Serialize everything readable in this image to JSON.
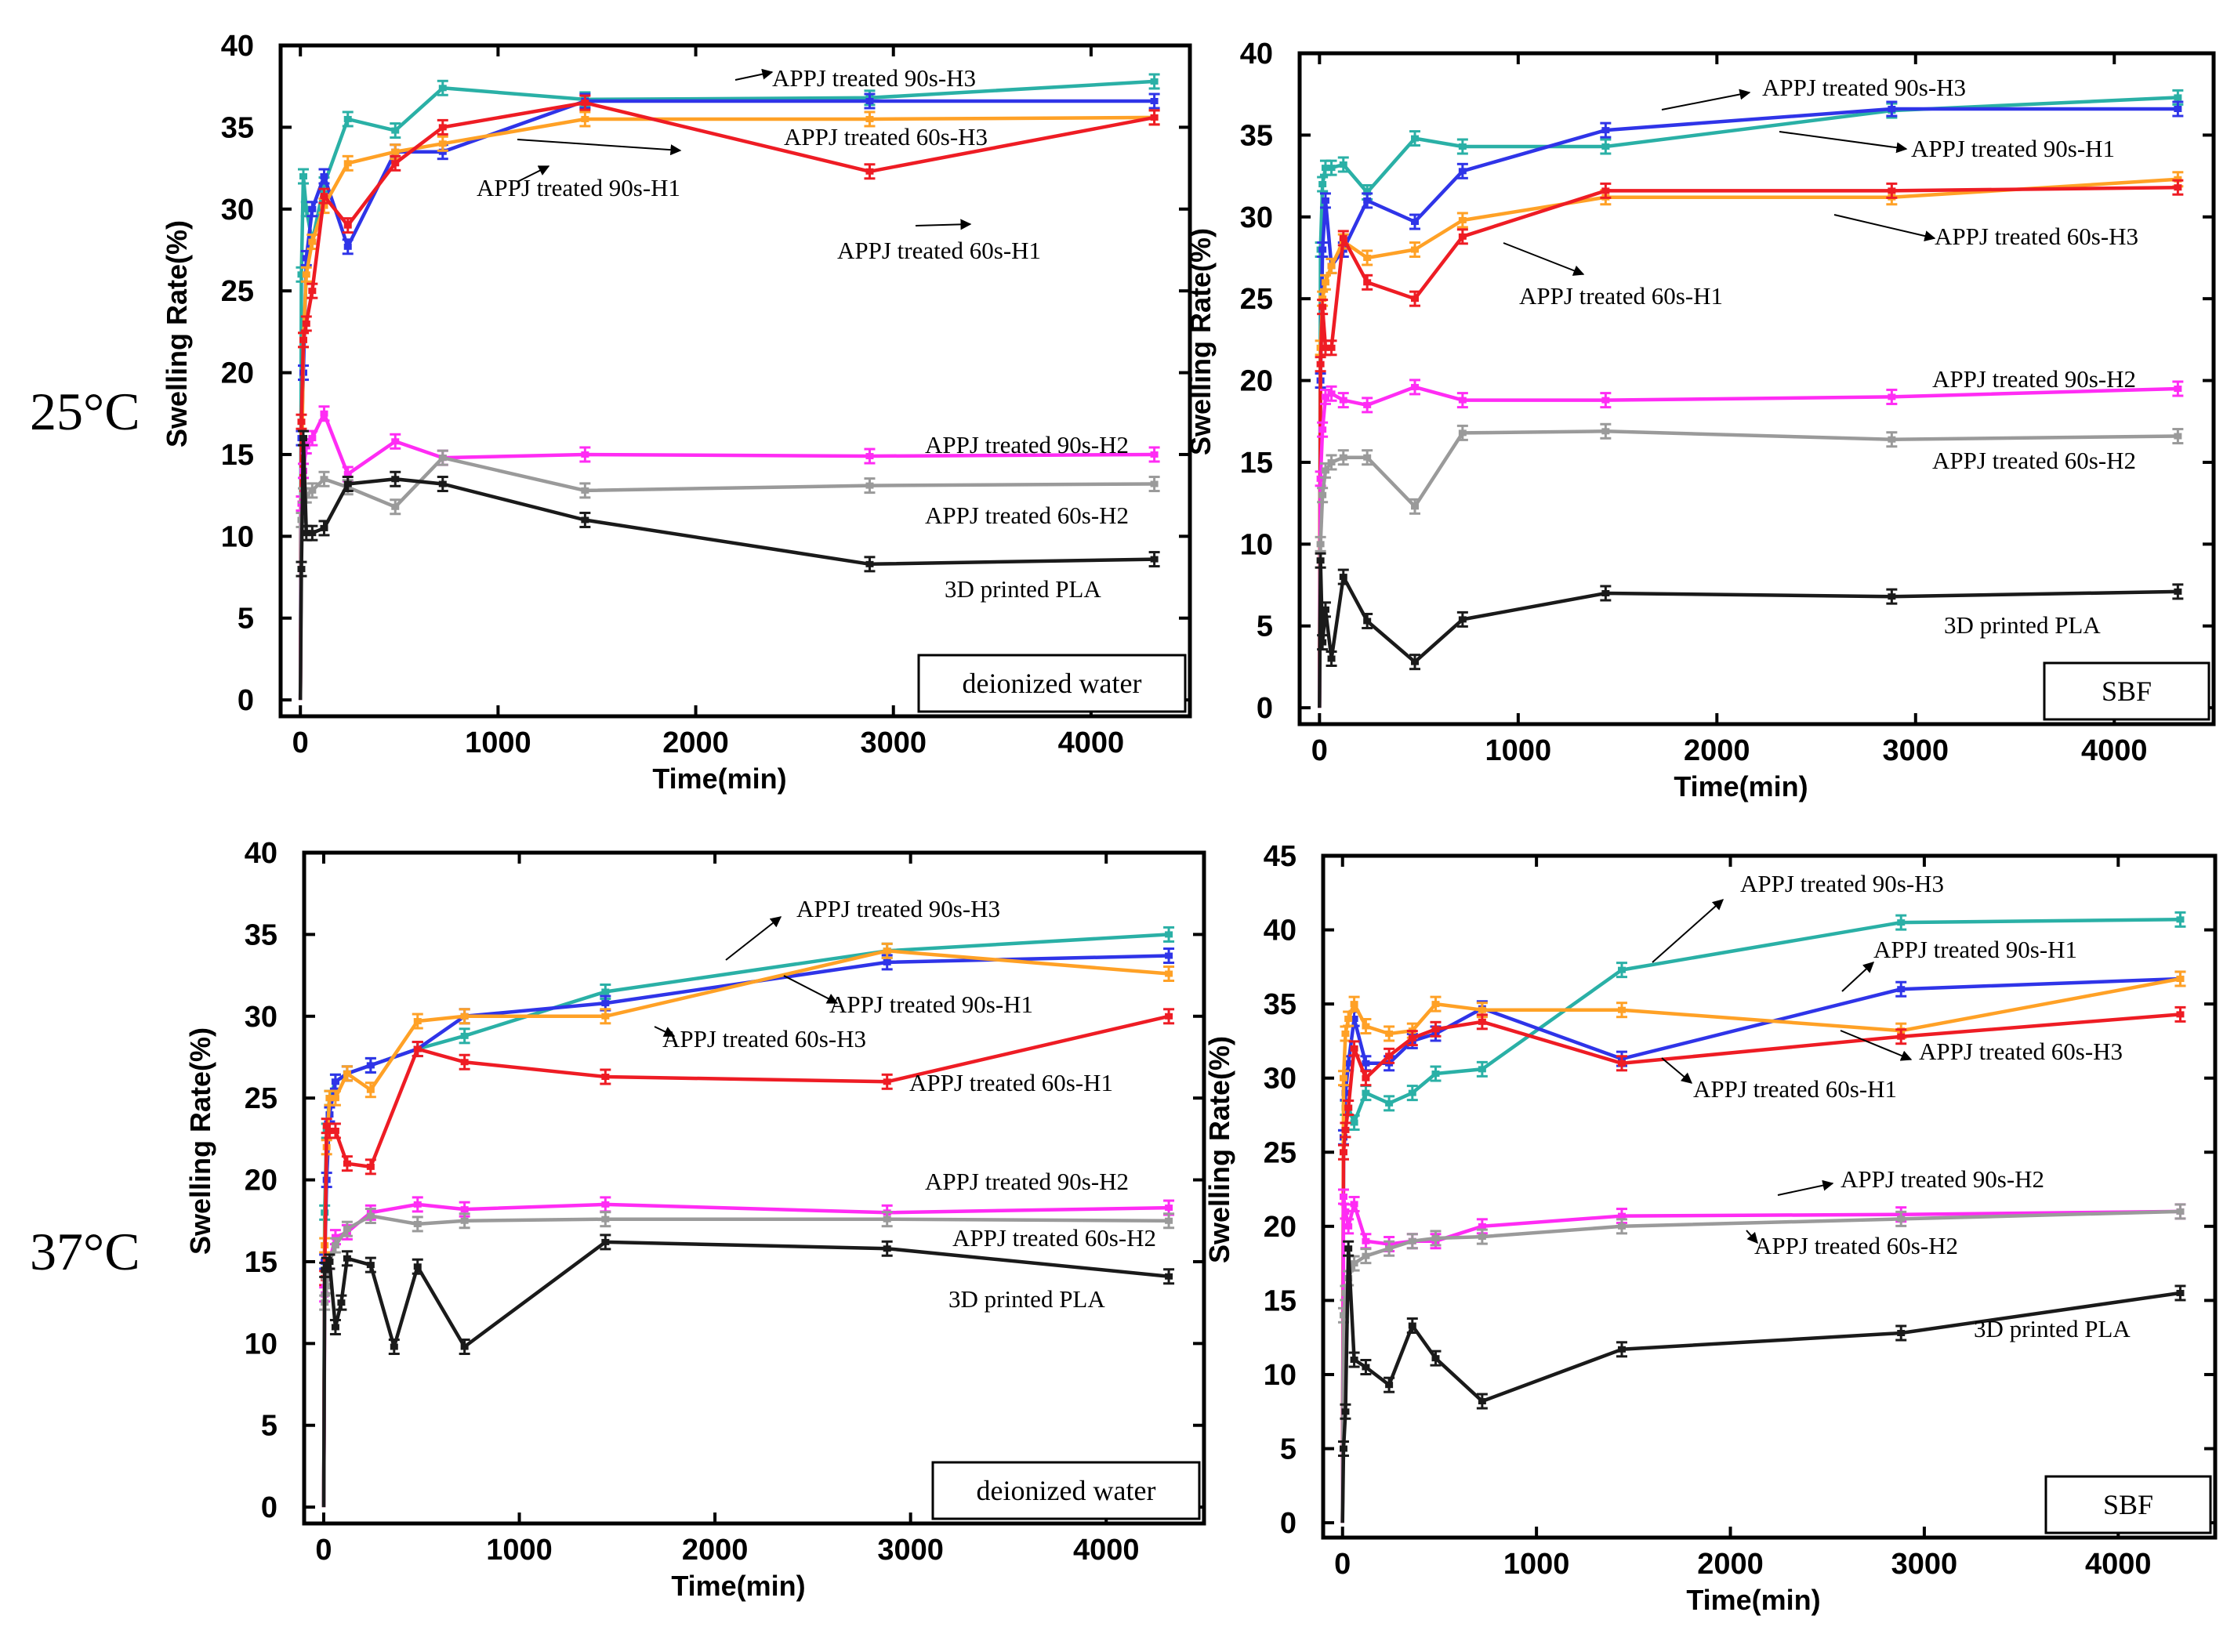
{
  "row_labels": [
    "25°C",
    "37°C"
  ],
  "series_colors": {
    "APPJ treated 90s-H3": "#2ab0a6",
    "APPJ treated 90s-H1": "#2f34e8",
    "APPJ treated 60s-H3": "#ffa126",
    "APPJ treated 60s-H1": "#ee1c24",
    "APPJ treated 90s-H2": "#ff2cf4",
    "APPJ treated 60s-H2": "#9a9a9a",
    "3D printed PLA": "#1a1a1a"
  },
  "chart_data": [
    {
      "type": "line",
      "medium": "deionized water",
      "temperature": "25°C",
      "xlabel": "Time(min)",
      "ylabel": "Swelling Rate(%)",
      "xlim": [
        -100,
        4500
      ],
      "ylim": [
        -1,
        40
      ],
      "xticks": [
        0,
        1000,
        2000,
        3000,
        4000
      ],
      "yticks": [
        0,
        5,
        10,
        15,
        20,
        25,
        30,
        35,
        40
      ],
      "series": [
        {
          "name": "APPJ treated 90s-H3",
          "x": [
            0,
            5,
            15,
            30,
            60,
            120,
            240,
            480,
            720,
            1440,
            2880,
            4320
          ],
          "y": [
            0,
            26,
            32,
            30,
            28,
            31.5,
            35.5,
            34.8,
            37.4,
            36.7,
            36.8,
            37.8
          ]
        },
        {
          "name": "APPJ treated 90s-H1",
          "x": [
            0,
            5,
            15,
            30,
            60,
            120,
            240,
            480,
            720,
            1440,
            2880,
            4320
          ],
          "y": [
            0,
            16,
            20,
            27,
            30,
            32,
            27.7,
            33.5,
            33.5,
            36.6,
            36.6,
            36.6
          ]
        },
        {
          "name": "APPJ treated 60s-H3",
          "x": [
            0,
            5,
            15,
            30,
            60,
            120,
            240,
            480,
            720,
            1440,
            2880,
            4320
          ],
          "y": [
            0,
            12,
            22,
            26,
            28,
            30.2,
            32.8,
            33.5,
            34,
            35.5,
            35.5,
            35.6
          ]
        },
        {
          "name": "APPJ treated 60s-H1",
          "x": [
            0,
            5,
            15,
            30,
            60,
            120,
            240,
            480,
            720,
            1440,
            2880,
            4320
          ],
          "y": [
            0,
            17,
            22,
            23,
            25,
            30.8,
            29,
            32.8,
            35,
            36.5,
            32.3,
            35.6
          ]
        },
        {
          "name": "APPJ treated 90s-H2",
          "x": [
            0,
            5,
            15,
            30,
            60,
            120,
            240,
            480,
            720,
            1440,
            2880,
            4320
          ],
          "y": [
            0,
            12,
            14,
            15.5,
            16,
            17.5,
            13.8,
            15.8,
            14.8,
            15,
            14.9,
            15
          ]
        },
        {
          "name": "APPJ treated 60s-H2",
          "x": [
            0,
            5,
            15,
            30,
            60,
            120,
            240,
            480,
            720,
            1440,
            2880,
            4320
          ],
          "y": [
            0,
            11,
            12.5,
            12.5,
            12.8,
            13.5,
            13,
            11.8,
            14.8,
            12.8,
            13.1,
            13.2
          ]
        },
        {
          "name": "3D printed PLA",
          "x": [
            0,
            5,
            15,
            30,
            60,
            120,
            240,
            480,
            720,
            1440,
            2880,
            4320
          ],
          "y": [
            0,
            8,
            16,
            10.2,
            10.2,
            10.5,
            13.2,
            13.5,
            13.2,
            11,
            8.3,
            8.6
          ]
        }
      ],
      "annotations": [
        "APPJ treated 90s-H3",
        "APPJ treated 60s-H3",
        "APPJ treated 90s-H1",
        "APPJ treated 60s-H1",
        "APPJ treated 90s-H2",
        "APPJ treated 60s-H2",
        "3D printed PLA"
      ]
    },
    {
      "type": "line",
      "medium": "SBF",
      "temperature": "25°C",
      "xlabel": "Time(min)",
      "ylabel": "Swelling Rate(%)",
      "xlim": [
        -100,
        4500
      ],
      "ylim": [
        -1,
        40
      ],
      "xticks": [
        0,
        1000,
        2000,
        3000,
        4000
      ],
      "yticks": [
        0,
        5,
        10,
        15,
        20,
        25,
        30,
        35,
        40
      ],
      "series": [
        {
          "name": "APPJ treated 90s-H3",
          "x": [
            0,
            5,
            15,
            30,
            60,
            120,
            240,
            480,
            720,
            1440,
            2880,
            4320
          ],
          "y": [
            0,
            28,
            32,
            33,
            33,
            33.2,
            31.5,
            34.8,
            34.3,
            34.3,
            36.5,
            37.3
          ]
        },
        {
          "name": "APPJ treated 90s-H1",
          "x": [
            0,
            5,
            15,
            30,
            60,
            120,
            240,
            480,
            720,
            1440,
            2880,
            4320
          ],
          "y": [
            0,
            20,
            28,
            31,
            27,
            28,
            31,
            29.7,
            32.8,
            35.3,
            36.6,
            36.6
          ]
        },
        {
          "name": "APPJ treated 60s-H3",
          "x": [
            0,
            5,
            15,
            30,
            60,
            120,
            240,
            480,
            720,
            1440,
            2880,
            4320
          ],
          "y": [
            0,
            22,
            25,
            26,
            27,
            28.5,
            27.5,
            28,
            29.8,
            31.2,
            31.2,
            32.3
          ]
        },
        {
          "name": "APPJ treated 60s-H1",
          "x": [
            0,
            5,
            15,
            30,
            60,
            120,
            240,
            480,
            720,
            1440,
            2880,
            4320
          ],
          "y": [
            0,
            21,
            24.5,
            22,
            22,
            28.7,
            26,
            25,
            28.8,
            31.6,
            31.6,
            31.8
          ]
        },
        {
          "name": "APPJ treated 90s-H2",
          "x": [
            0,
            5,
            15,
            30,
            60,
            120,
            240,
            480,
            720,
            1440,
            2880,
            4320
          ],
          "y": [
            0,
            14,
            17,
            19,
            19.2,
            18.8,
            18.5,
            19.6,
            18.8,
            18.8,
            19,
            19.5
          ]
        },
        {
          "name": "APPJ treated 60s-H2",
          "x": [
            0,
            5,
            15,
            30,
            60,
            120,
            240,
            480,
            720,
            1440,
            2880,
            4320
          ],
          "y": [
            0,
            10,
            13,
            14.5,
            15,
            15.3,
            15.3,
            12.3,
            16.8,
            16.9,
            16.4,
            16.6
          ]
        },
        {
          "name": "3D printed PLA",
          "x": [
            0,
            5,
            15,
            30,
            60,
            120,
            240,
            480,
            720,
            1440,
            2880,
            4320
          ],
          "y": [
            0,
            9,
            4,
            6,
            3,
            8,
            5.3,
            2.8,
            5.4,
            7,
            6.8,
            7.1
          ]
        }
      ],
      "annotations": [
        "APPJ treated 90s-H3",
        "APPJ treated 90s-H1",
        "APPJ treated 60s-H3",
        "APPJ treated 60s-H1",
        "APPJ treated 90s-H2",
        "APPJ treated 60s-H2",
        "3D printed PLA"
      ]
    },
    {
      "type": "line",
      "medium": "deionized water",
      "temperature": "37°C",
      "xlabel": "Time(min)",
      "ylabel": "Swelling Rate(%)",
      "xlim": [
        -100,
        4500
      ],
      "ylim": [
        -1,
        40
      ],
      "xticks": [
        0,
        1000,
        2000,
        3000,
        4000
      ],
      "yticks": [
        0,
        5,
        10,
        15,
        20,
        25,
        30,
        35,
        40
      ],
      "series": [
        {
          "name": "APPJ treated 90s-H3",
          "x": [
            0,
            5,
            15,
            30,
            60,
            120,
            240,
            480,
            720,
            1440,
            2880,
            4320
          ],
          "y": [
            0,
            18,
            23,
            25,
            26,
            26.5,
            27,
            28,
            28.8,
            31.5,
            34,
            35
          ]
        },
        {
          "name": "APPJ treated 90s-H1",
          "x": [
            0,
            5,
            15,
            30,
            60,
            120,
            240,
            480,
            720,
            1440,
            2880,
            4320
          ],
          "y": [
            0,
            15,
            20,
            24,
            26,
            26.5,
            27,
            28,
            30,
            30.8,
            33.3,
            33.7
          ]
        },
        {
          "name": "APPJ treated 60s-H3",
          "x": [
            0,
            5,
            15,
            30,
            60,
            120,
            240,
            480,
            720,
            1440,
            2880,
            4320
          ],
          "y": [
            0,
            16,
            22,
            25,
            25,
            26.5,
            25.5,
            29.7,
            30,
            30,
            34,
            32.6
          ]
        },
        {
          "name": "APPJ treated 60s-H1",
          "x": [
            0,
            5,
            15,
            30,
            60,
            120,
            240,
            480,
            720,
            1440,
            2880,
            4320
          ],
          "y": [
            0,
            14,
            23.3,
            23,
            23,
            21,
            20.8,
            28,
            27.2,
            26.3,
            26,
            30
          ]
        },
        {
          "name": "APPJ treated 90s-H2",
          "x": [
            0,
            5,
            15,
            30,
            60,
            120,
            240,
            480,
            720,
            1440,
            2880,
            4320
          ],
          "y": [
            0,
            13,
            14,
            15,
            16.5,
            16.8,
            18,
            18.5,
            18.2,
            18.5,
            18,
            18.3
          ]
        },
        {
          "name": "APPJ treated 60s-H2",
          "x": [
            0,
            5,
            15,
            30,
            60,
            120,
            240,
            480,
            720,
            1440,
            2880,
            4320
          ],
          "y": [
            0,
            12.5,
            13.5,
            15,
            16,
            17,
            17.8,
            17.3,
            17.5,
            17.6,
            17.6,
            17.5
          ]
        },
        {
          "name": "3D printed PLA",
          "x": [
            0,
            5,
            15,
            30,
            60,
            90,
            120,
            240,
            360,
            480,
            720,
            1440,
            2880,
            4320
          ],
          "y": [
            0,
            14.5,
            14.8,
            15,
            11,
            12.5,
            15.2,
            14.8,
            9.8,
            14.7,
            9.8,
            16.2,
            15.8,
            14.1
          ]
        }
      ],
      "annotations": [
        "APPJ treated 90s-H3",
        "APPJ treated 90s-H1",
        "APPJ treated 60s-H3",
        "APPJ treated 60s-H1",
        "APPJ treated 90s-H2",
        "APPJ treated 60s-H2",
        "3D printed PLA"
      ]
    },
    {
      "type": "line",
      "medium": "SBF",
      "temperature": "37°C",
      "xlabel": "Time(min)",
      "ylabel": "Swelling Rate(%)",
      "xlim": [
        -100,
        4500
      ],
      "ylim": [
        -1,
        45
      ],
      "xticks": [
        0,
        1000,
        2000,
        3000,
        4000
      ],
      "yticks": [
        0,
        5,
        10,
        15,
        20,
        25,
        30,
        35,
        40,
        45
      ],
      "series": [
        {
          "name": "APPJ treated 90s-H3",
          "x": [
            0,
            5,
            15,
            30,
            60,
            120,
            240,
            360,
            480,
            720,
            1440,
            2880,
            4320
          ],
          "y": [
            0,
            26,
            28,
            28,
            27,
            29,
            28.3,
            29,
            30.3,
            30.6,
            37.3,
            40.5,
            40.7
          ]
        },
        {
          "name": "APPJ treated 90s-H1",
          "x": [
            0,
            5,
            15,
            30,
            60,
            120,
            240,
            360,
            480,
            720,
            1440,
            2880,
            4320
          ],
          "y": [
            0,
            26,
            29,
            31,
            34,
            31,
            31,
            32.5,
            33,
            34.7,
            31.3,
            36,
            36.7
          ]
        },
        {
          "name": "APPJ treated 60s-H3",
          "x": [
            0,
            5,
            15,
            30,
            60,
            120,
            240,
            360,
            480,
            720,
            1440,
            2880,
            4320
          ],
          "y": [
            0,
            30,
            33,
            34,
            35,
            33.5,
            33,
            33.2,
            35,
            34.6,
            34.6,
            33.2,
            36.7
          ]
        },
        {
          "name": "APPJ treated 60s-H1",
          "x": [
            0,
            5,
            15,
            30,
            60,
            120,
            240,
            360,
            480,
            720,
            1440,
            2880,
            4320
          ],
          "y": [
            0,
            25,
            26.5,
            28,
            32,
            30,
            31.5,
            32.7,
            33.3,
            33.8,
            31,
            32.8,
            34.3
          ]
        },
        {
          "name": "APPJ treated 90s-H2",
          "x": [
            0,
            5,
            15,
            30,
            60,
            120,
            240,
            360,
            480,
            720,
            1440,
            2880,
            4320
          ],
          "y": [
            0,
            22,
            21,
            20,
            21.5,
            19,
            18.8,
            19,
            19,
            20,
            20.7,
            20.8,
            21
          ]
        },
        {
          "name": "APPJ treated 60s-H2",
          "x": [
            0,
            5,
            15,
            30,
            60,
            120,
            240,
            360,
            480,
            720,
            1440,
            2880,
            4320
          ],
          "y": [
            0,
            14,
            15.5,
            16.5,
            17.5,
            18,
            18.5,
            19,
            19.2,
            19.3,
            20,
            20.5,
            21
          ]
        },
        {
          "name": "3D printed PLA",
          "x": [
            0,
            5,
            15,
            30,
            60,
            120,
            240,
            360,
            480,
            720,
            1440,
            2880,
            4320
          ],
          "y": [
            0,
            5,
            7.5,
            18.5,
            11,
            10.5,
            9.3,
            13.3,
            11.1,
            8.2,
            11.7,
            12.8,
            15.5
          ]
        }
      ],
      "annotations": [
        "APPJ treated 90s-H3",
        "APPJ treated 90s-H1",
        "APPJ treated 60s-H3",
        "APPJ treated 60s-H1",
        "APPJ treated 90s-H2",
        "APPJ treated 60s-H2",
        "3D printed PLA"
      ]
    }
  ]
}
